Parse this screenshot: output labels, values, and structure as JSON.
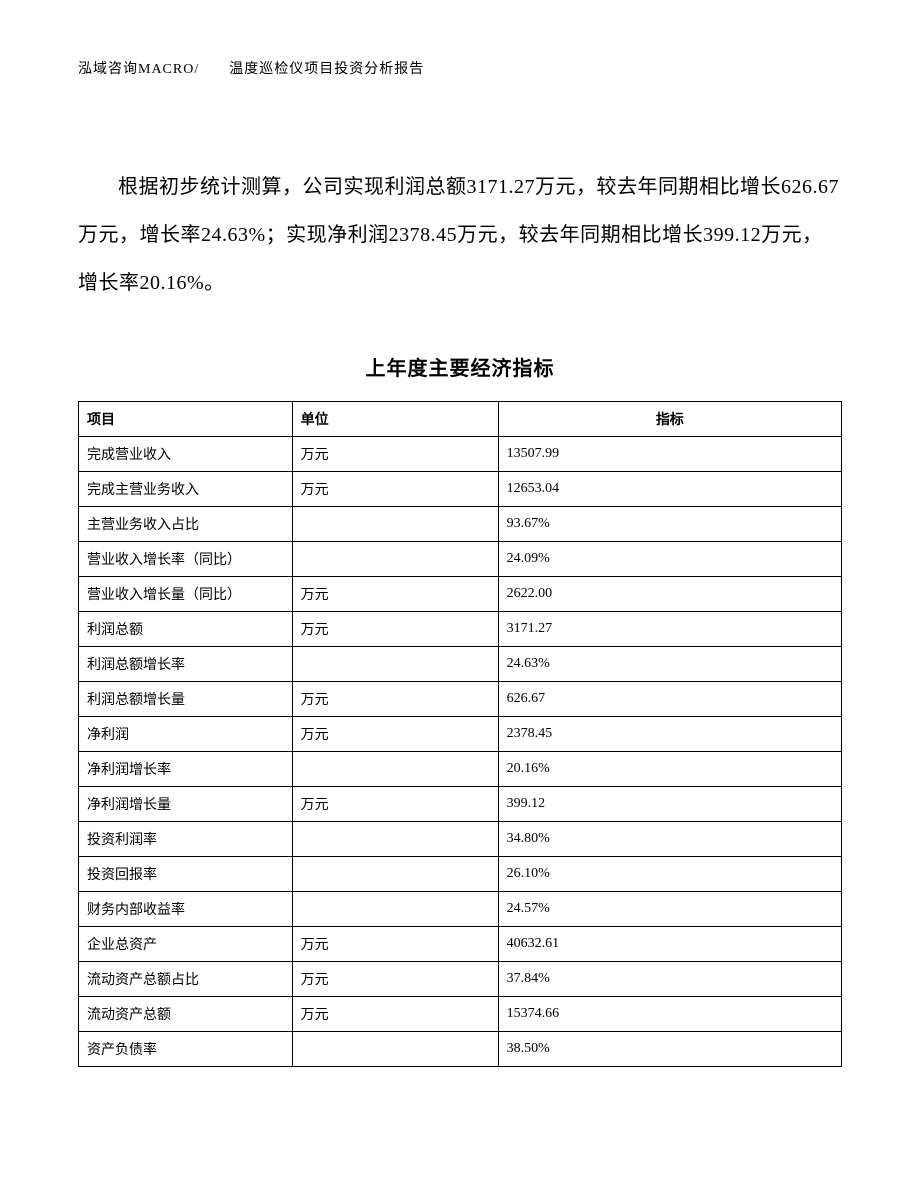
{
  "header": {
    "text": "泓域咨询MACRO/　　温度巡检仪项目投资分析报告"
  },
  "paragraph": {
    "text": "根据初步统计测算，公司实现利润总额3171.27万元，较去年同期相比增长626.67万元，增长率24.63%；实现净利润2378.45万元，较去年同期相比增长399.12万元，增长率20.16%。"
  },
  "table": {
    "title": "上年度主要经济指标",
    "columns": [
      "项目",
      "单位",
      "指标"
    ],
    "rows": [
      [
        "完成营业收入",
        "万元",
        "13507.99"
      ],
      [
        "完成主营业务收入",
        "万元",
        "12653.04"
      ],
      [
        "主营业务收入占比",
        "",
        "93.67%"
      ],
      [
        "营业收入增长率（同比）",
        "",
        "24.09%"
      ],
      [
        "营业收入增长量（同比）",
        "万元",
        "2622.00"
      ],
      [
        "利润总额",
        "万元",
        "3171.27"
      ],
      [
        "利润总额增长率",
        "",
        "24.63%"
      ],
      [
        "利润总额增长量",
        "万元",
        "626.67"
      ],
      [
        "净利润",
        "万元",
        "2378.45"
      ],
      [
        "净利润增长率",
        "",
        "20.16%"
      ],
      [
        "净利润增长量",
        "万元",
        "399.12"
      ],
      [
        "投资利润率",
        "",
        "34.80%"
      ],
      [
        "投资回报率",
        "",
        "26.10%"
      ],
      [
        "财务内部收益率",
        "",
        "24.57%"
      ],
      [
        "企业总资产",
        "万元",
        "40632.61"
      ],
      [
        "流动资产总额占比",
        "万元",
        "37.84%"
      ],
      [
        "流动资产总额",
        "万元",
        "15374.66"
      ],
      [
        "资产负债率",
        "",
        "38.50%"
      ]
    ]
  }
}
